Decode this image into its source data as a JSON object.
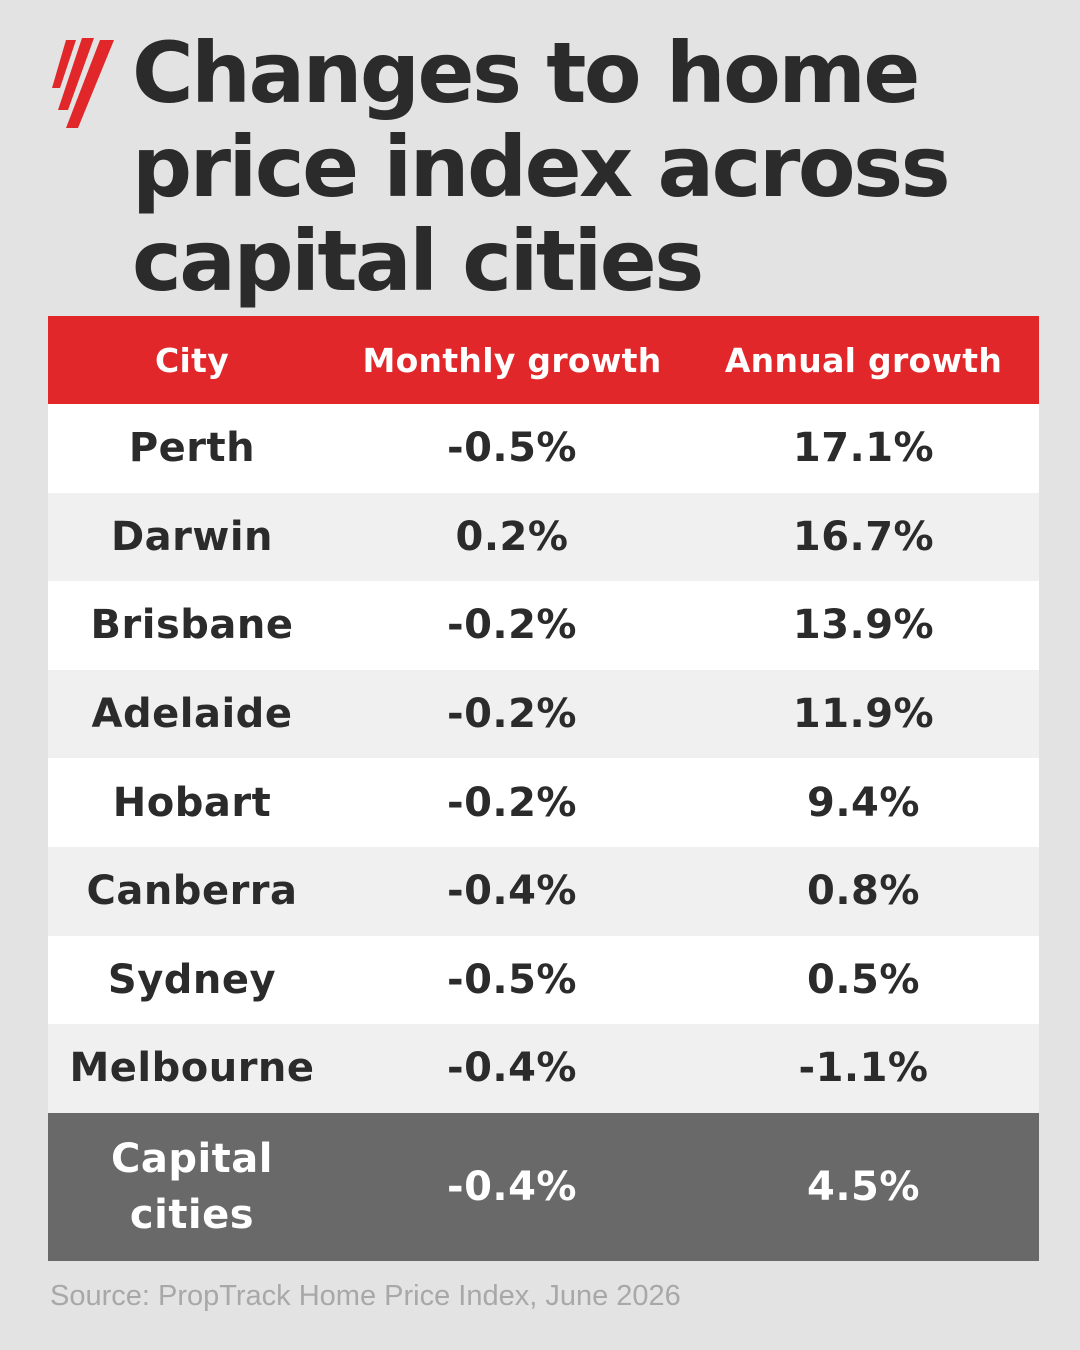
{
  "brand": {
    "logo_icon": "sbs-logo-icon",
    "accent_color": "#e12729"
  },
  "title": "Changes to home price index across capital cities",
  "chart_data": {
    "type": "table",
    "columns": [
      "City",
      "Monthly growth",
      "Annual growth"
    ],
    "rows": [
      {
        "city": "Perth",
        "monthly": "-0.5%",
        "annual": "17.1%"
      },
      {
        "city": "Darwin",
        "monthly": "0.2%",
        "annual": "16.7%"
      },
      {
        "city": "Brisbane",
        "monthly": "-0.2%",
        "annual": "13.9%"
      },
      {
        "city": "Adelaide",
        "monthly": "-0.2%",
        "annual": "11.9%"
      },
      {
        "city": "Hobart",
        "monthly": "-0.2%",
        "annual": "9.4%"
      },
      {
        "city": "Canberra",
        "monthly": "-0.4%",
        "annual": "0.8%"
      },
      {
        "city": "Sydney",
        "monthly": "-0.5%",
        "annual": "0.5%"
      },
      {
        "city": "Melbourne",
        "monthly": "-0.4%",
        "annual": "-1.1%"
      }
    ],
    "total": {
      "city_line1": "Capital",
      "city_line2": "cities",
      "monthly": "-0.4%",
      "annual": "4.5%"
    },
    "header_color": "#e12729",
    "total_row_color": "#696969"
  },
  "source": "Source: PropTrack Home Price Index, June 2026"
}
